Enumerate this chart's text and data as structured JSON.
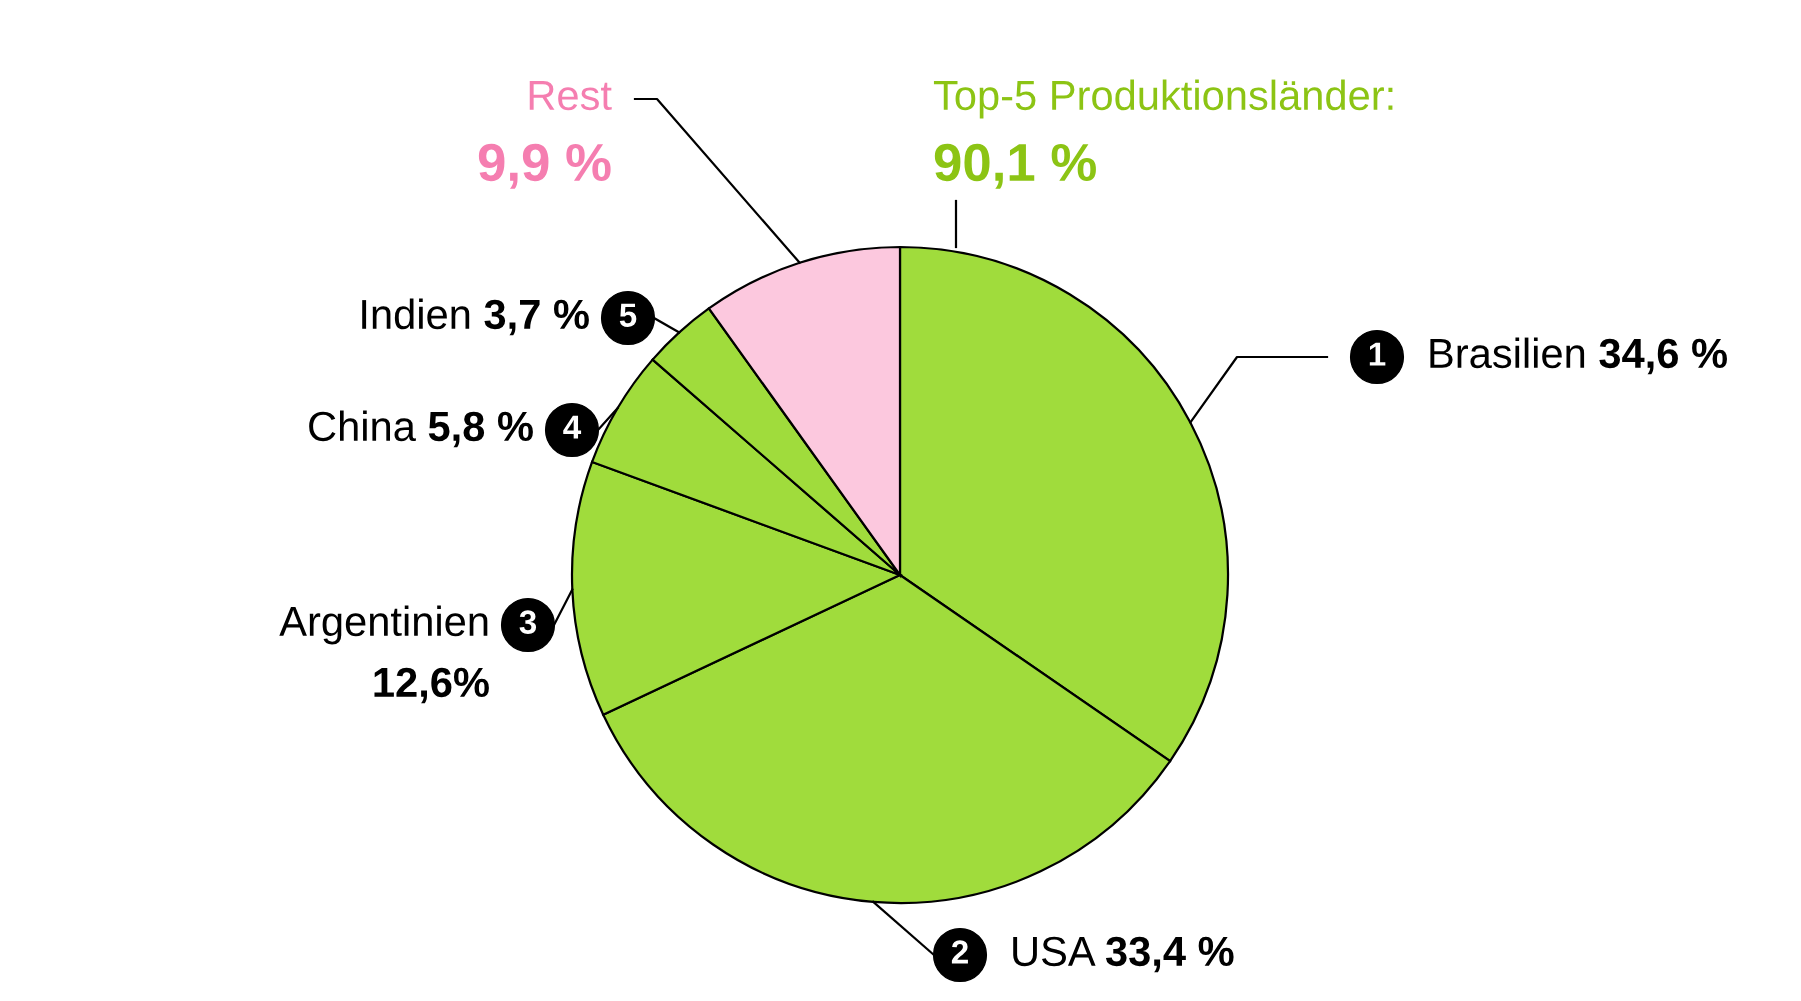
{
  "chart_data": {
    "type": "pie",
    "categories": [
      "Brasilien",
      "USA",
      "Argentinien",
      "China",
      "Indien",
      "Rest"
    ],
    "values": [
      34.6,
      33.4,
      12.6,
      5.8,
      3.7,
      9.9
    ],
    "value_labels": [
      "34,6 %",
      "33,4 %",
      "12,6%",
      "5,8 %",
      "3,7 %",
      "9,9 %"
    ],
    "colors": [
      "#a0dc3c",
      "#a0dc3c",
      "#a0dc3c",
      "#a0dc3c",
      "#a0dc3c",
      "#fcc8de"
    ],
    "annotations": [
      "Top-5 Produktionsländer:",
      "90,1 %",
      "1",
      "2",
      "3",
      "4",
      "5"
    ]
  }
}
